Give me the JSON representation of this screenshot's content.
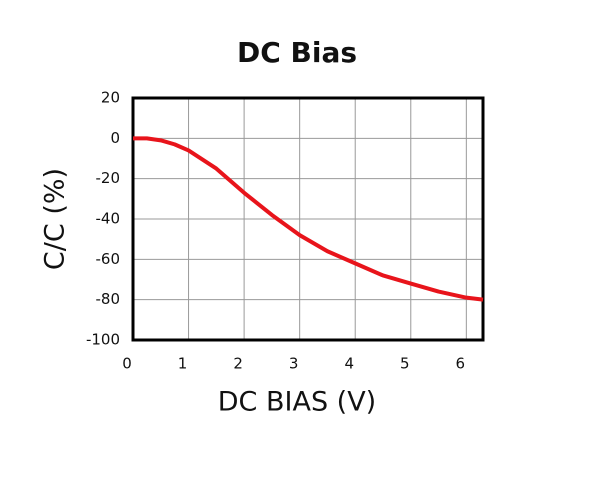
{
  "chart_data": {
    "type": "line",
    "title": "DC Bias",
    "x_label": "DC BIAS (V)",
    "y_label": "C/C (%)",
    "x": [
      0,
      0.25,
      0.5,
      0.75,
      1,
      1.5,
      2,
      2.5,
      3,
      3.5,
      4,
      4.5,
      5,
      5.5,
      6,
      6.3
    ],
    "series": [
      {
        "name": "C/C",
        "color": "#e8141b",
        "values": [
          0,
          0,
          -1,
          -3,
          -6,
          -15,
          -27,
          -38,
          -48,
          -56,
          -62,
          -68,
          -72,
          -76,
          -79,
          -80
        ]
      }
    ],
    "xlim": [
      0,
      6.3
    ],
    "xticks": [
      0,
      1,
      2,
      3,
      4,
      5,
      6
    ],
    "ylim": [
      -100,
      20
    ],
    "yticks": [
      -100,
      -80,
      -60,
      -40,
      -20,
      0,
      20
    ],
    "grid": true
  }
}
